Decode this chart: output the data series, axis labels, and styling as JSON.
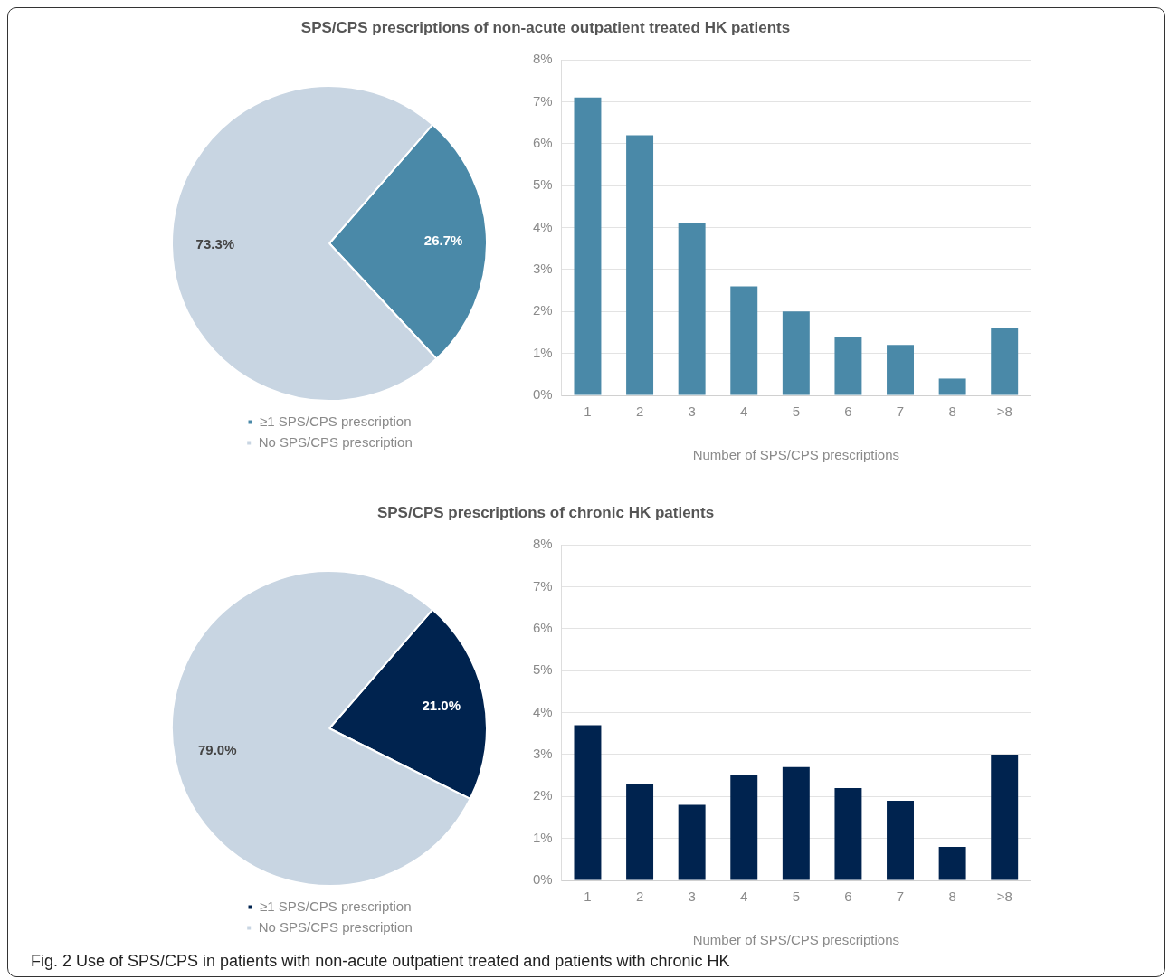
{
  "chart_data": [
    {
      "type": "pie",
      "title": "SPS/CPS prescriptions of non-acute outpatient treated HK patients",
      "categories": [
        "≥1 SPS/CPS prescription",
        "No SPS/CPS prescription"
      ],
      "values": [
        26.7,
        73.3
      ],
      "colors": [
        "#4a89a8",
        "#c8d5e2"
      ],
      "value_labels": [
        "26.7%",
        "73.3%"
      ],
      "legend": "bottom"
    },
    {
      "type": "bar",
      "categories": [
        "1",
        "2",
        "3",
        "4",
        "5",
        "6",
        "7",
        "8",
        ">8"
      ],
      "values": [
        7.1,
        6.2,
        4.1,
        2.6,
        2.0,
        1.4,
        1.2,
        0.4,
        1.6
      ],
      "color": "#4a89a8",
      "xlabel": "Number of SPS/CPS prescriptions",
      "ylim": [
        0,
        8
      ],
      "yticks": [
        {
          "value": 0,
          "label": "0%"
        },
        {
          "value": 1,
          "label": "1%"
        },
        {
          "value": 2,
          "label": "2%"
        },
        {
          "value": 3,
          "label": "3%"
        },
        {
          "value": 4,
          "label": "4%"
        },
        {
          "value": 5,
          "label": "5%"
        },
        {
          "value": 6,
          "label": "6%"
        },
        {
          "value": 7,
          "label": "7%"
        },
        {
          "value": 8,
          "label": "8%"
        }
      ],
      "grid": "y"
    },
    {
      "type": "pie",
      "title": "SPS/CPS prescriptions of chronic HK patients",
      "categories": [
        "≥1 SPS/CPS prescription",
        "No SPS/CPS prescription"
      ],
      "values": [
        21.0,
        79.0
      ],
      "colors": [
        "#00234f",
        "#c8d5e2"
      ],
      "value_labels": [
        "21.0%",
        "79.0%"
      ],
      "legend": "bottom"
    },
    {
      "type": "bar",
      "categories": [
        "1",
        "2",
        "3",
        "4",
        "5",
        "6",
        "7",
        "8",
        ">8"
      ],
      "values": [
        3.7,
        2.3,
        1.8,
        2.5,
        2.7,
        2.2,
        1.9,
        0.8,
        3.0
      ],
      "color": "#00234f",
      "xlabel": "Number of SPS/CPS prescriptions",
      "ylim": [
        0,
        8
      ],
      "yticks": [
        {
          "value": 0,
          "label": "0%"
        },
        {
          "value": 1,
          "label": "1%"
        },
        {
          "value": 2,
          "label": "2%"
        },
        {
          "value": 3,
          "label": "3%"
        },
        {
          "value": 4,
          "label": "4%"
        },
        {
          "value": 5,
          "label": "5%"
        },
        {
          "value": 6,
          "label": "6%"
        },
        {
          "value": 7,
          "label": "7%"
        },
        {
          "value": 8,
          "label": "8%"
        }
      ],
      "grid": "y",
      "annotations": [
        "Fig. 2 Use of SPS/CPS in patients with non-acute outpatient treated and patients with chronic HK"
      ]
    }
  ]
}
